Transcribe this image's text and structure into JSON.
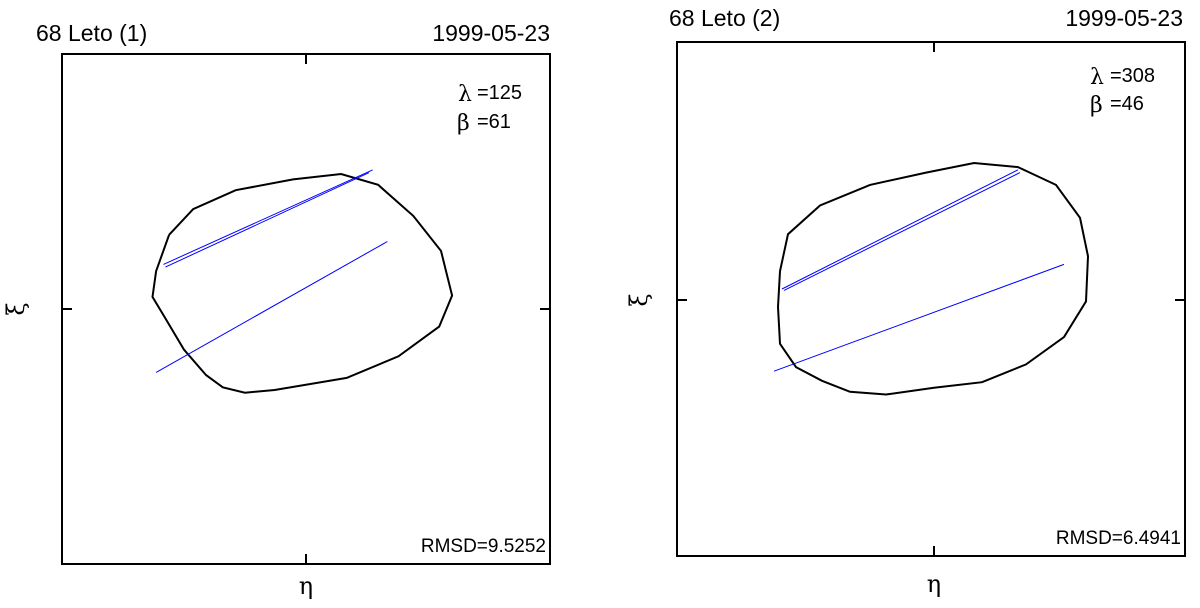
{
  "chart_data": [
    {
      "type": "diagram",
      "title": "68 Leto  (1)",
      "date": "1999-05-23",
      "xlabel": "η",
      "ylabel": "ξ",
      "lambda": {
        "symbol": "λ",
        "value": "=125"
      },
      "beta": {
        "symbol": "β",
        "value": "=61"
      },
      "rmsd": "RMSD=9.5252",
      "grid": false,
      "colors": {
        "outline": "#000000",
        "chords": "#0000ff"
      },
      "outline_points": [
        [
          -0.74,
          0.55
        ],
        [
          -0.61,
          0.74
        ],
        [
          -0.38,
          0.88
        ],
        [
          -0.07,
          0.96
        ],
        [
          0.19,
          1.0
        ],
        [
          0.39,
          0.92
        ],
        [
          0.58,
          0.69
        ],
        [
          0.73,
          0.43
        ],
        [
          0.79,
          0.1
        ],
        [
          0.72,
          -0.13
        ],
        [
          0.5,
          -0.35
        ],
        [
          0.22,
          -0.51
        ],
        [
          -0.17,
          -0.6
        ],
        [
          -0.33,
          -0.62
        ],
        [
          -0.45,
          -0.58
        ],
        [
          -0.54,
          -0.49
        ],
        [
          -0.66,
          -0.3
        ],
        [
          -0.76,
          -0.07
        ],
        [
          -0.83,
          0.09
        ],
        [
          -0.81,
          0.28
        ],
        [
          -0.74,
          0.55
        ]
      ],
      "chords": [
        [
          [
            -0.77,
            0.33
          ],
          [
            0.36,
            1.03
          ]
        ],
        [
          [
            -0.76,
            0.31
          ],
          [
            0.34,
            1.01
          ]
        ],
        [
          [
            -0.81,
            -0.47
          ],
          [
            0.44,
            0.5
          ]
        ]
      ]
    },
    {
      "type": "diagram",
      "title": "68 Leto  (2)",
      "date": "1999-05-23",
      "xlabel": "η",
      "ylabel": "ξ",
      "lambda": {
        "symbol": "λ",
        "value": "=308"
      },
      "beta": {
        "symbol": "β",
        "value": "=46"
      },
      "rmsd": "RMSD=6.4941",
      "grid": false,
      "colors": {
        "outline": "#000000",
        "chords": "#0000ff"
      },
      "outline_points": [
        [
          -0.77,
          0.21
        ],
        [
          -0.73,
          0.48
        ],
        [
          -0.57,
          0.69
        ],
        [
          -0.32,
          0.84
        ],
        [
          -0.04,
          0.93
        ],
        [
          0.2,
          1.0
        ],
        [
          0.42,
          0.97
        ],
        [
          0.61,
          0.84
        ],
        [
          0.73,
          0.6
        ],
        [
          0.77,
          0.32
        ],
        [
          0.76,
          -0.01
        ],
        [
          0.65,
          -0.27
        ],
        [
          0.46,
          -0.47
        ],
        [
          0.24,
          -0.6
        ],
        [
          0.0,
          -0.64
        ],
        [
          -0.24,
          -0.69
        ],
        [
          -0.42,
          -0.67
        ],
        [
          -0.56,
          -0.59
        ],
        [
          -0.69,
          -0.49
        ],
        [
          -0.77,
          -0.32
        ],
        [
          -0.78,
          -0.05
        ],
        [
          -0.77,
          0.21
        ]
      ],
      "chords": [
        [
          [
            -0.76,
            0.08
          ],
          [
            0.42,
            0.95
          ]
        ],
        [
          [
            -0.75,
            0.07
          ],
          [
            0.43,
            0.93
          ]
        ],
        [
          [
            -0.8,
            -0.52
          ],
          [
            0.65,
            0.26
          ]
        ]
      ]
    }
  ]
}
